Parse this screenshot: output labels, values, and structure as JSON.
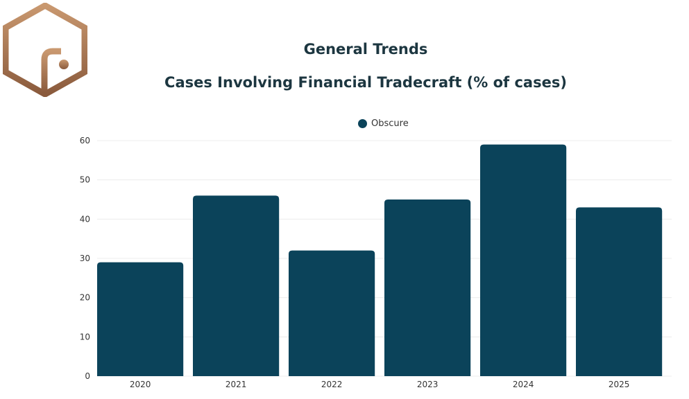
{
  "colors": {
    "bar": "#0b435a",
    "title": "#1c3640",
    "logo_light": "#c9986f",
    "logo_dark": "#8a5a3c",
    "grid": "#ececec"
  },
  "chart_data": {
    "type": "bar",
    "title": "General Trends",
    "subtitle": "Cases Involving Financial Tradecraft (% of cases)",
    "categories": [
      "2020",
      "2021",
      "2022",
      "2023",
      "2024",
      "2025"
    ],
    "series": [
      {
        "name": "Obscure",
        "values": [
          29,
          46,
          32,
          45,
          59,
          43
        ]
      }
    ],
    "xlabel": "",
    "ylabel": "",
    "ylim": [
      0,
      60
    ],
    "yticks": [
      "0",
      "10",
      "20",
      "30",
      "40",
      "50",
      "60"
    ],
    "grid": true,
    "legend_position": "top-center"
  }
}
